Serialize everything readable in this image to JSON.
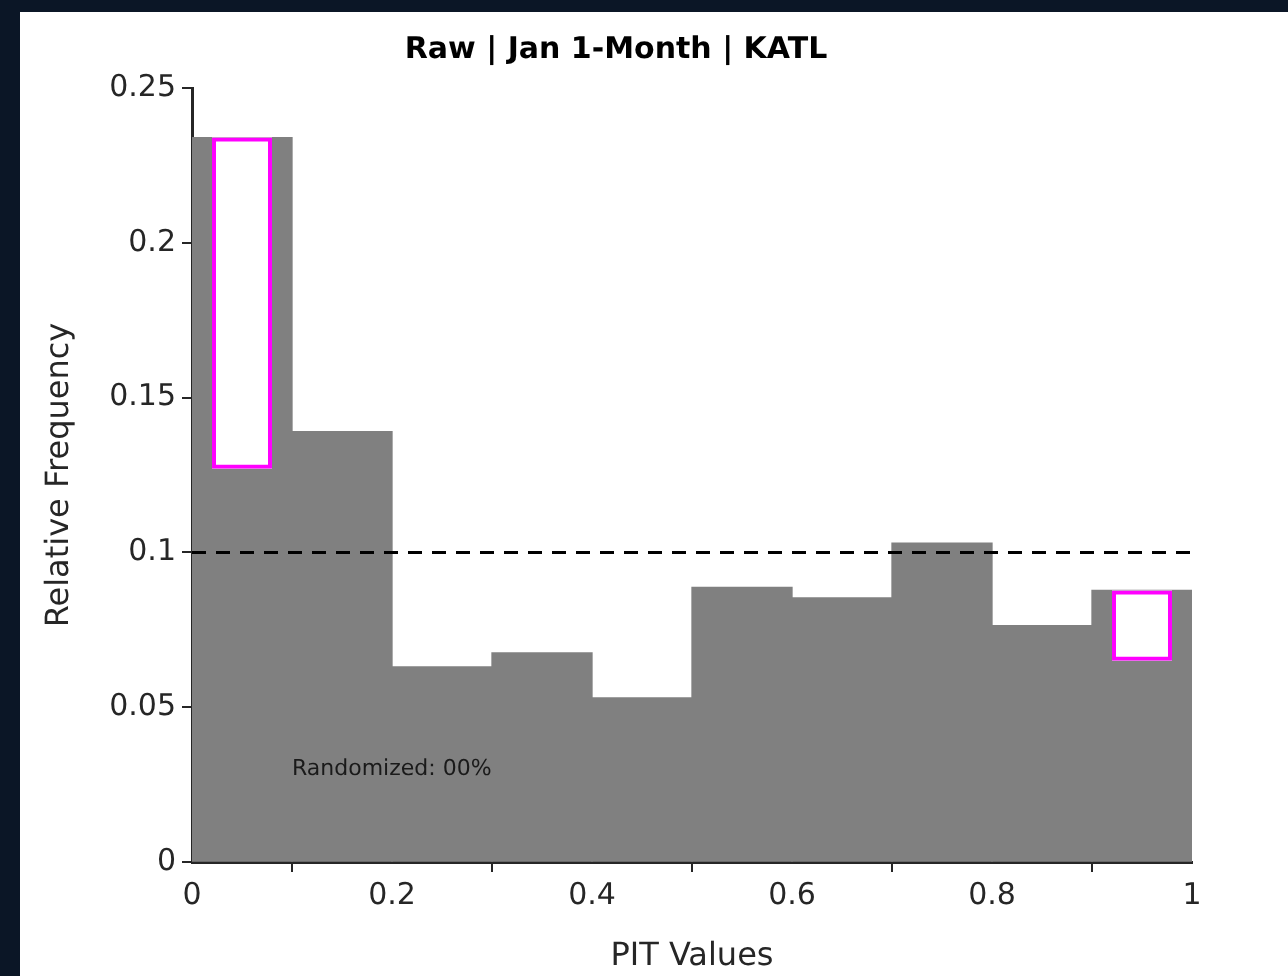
{
  "chart_data": {
    "type": "histogram",
    "title": "Raw | Jan 1-Month | KATL",
    "xlabel": "PIT Values",
    "ylabel": "Relative Frequency",
    "bins": [
      0,
      0.1,
      0.2,
      0.3,
      0.4,
      0.5,
      0.6,
      0.7,
      0.8,
      0.9,
      1
    ],
    "series": [
      {
        "color": "#808080",
        "values": [
          0.234,
          0.139,
          0.063,
          0.0675,
          0.053,
          0.0887,
          0.0853,
          0.103,
          0.0763,
          0.0877
        ]
      },
      {
        "type": "bar",
        "color": "#ff00ff",
        "x": [
          0.05,
          0.95
        ],
        "base": [
          0.127,
          0.065
        ],
        "values": [
          0.107,
          0.0227
        ]
      }
    ],
    "xlim": [
      0,
      1
    ],
    "xticks": [
      0,
      0.2,
      0.4,
      0.6,
      0.8,
      1
    ],
    "ylim": [
      0,
      0.25
    ],
    "yticks": [
      0,
      0.05,
      0.1,
      0.15,
      0.2,
      0.25
    ],
    "ref_lines": [
      {
        "axis": "y",
        "value": 0.1,
        "color": "#000000",
        "line_style": "dashed"
      }
    ],
    "annotations": [
      "Randomized: 00%"
    ],
    "grid": false,
    "legend": false
  }
}
